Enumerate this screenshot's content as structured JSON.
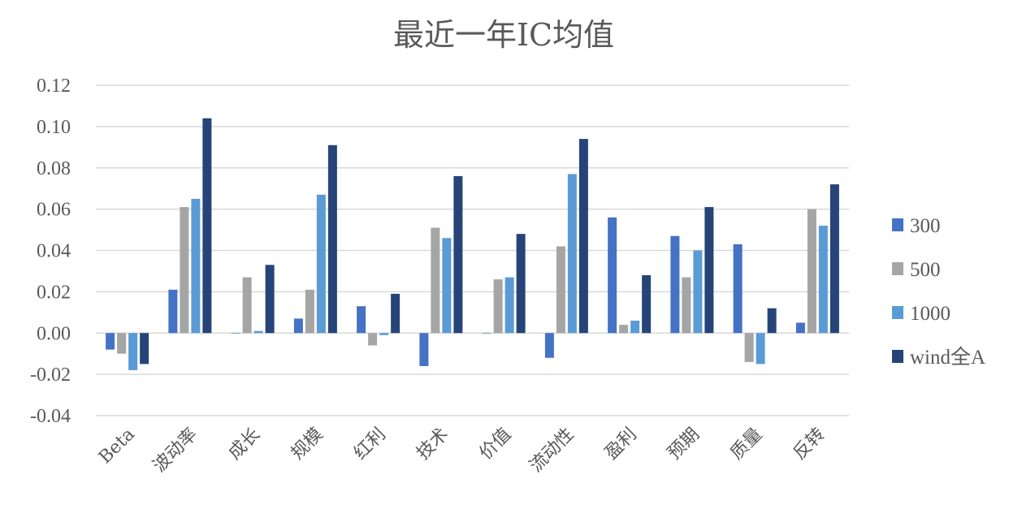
{
  "chart_data": {
    "type": "bar",
    "title": "最近一年IC均值",
    "xlabel": "",
    "ylabel": "",
    "categories": [
      "Beta",
      "波动率",
      "成长",
      "规模",
      "红利",
      "技术",
      "价值",
      "流动性",
      "盈利",
      "预期",
      "质量",
      "反转"
    ],
    "series": [
      {
        "name": "300",
        "color": "#4472c4",
        "values": [
          -0.008,
          0.021,
          0.0,
          0.007,
          0.013,
          -0.016,
          0.0,
          -0.012,
          0.056,
          0.047,
          0.043,
          0.005
        ]
      },
      {
        "name": "500",
        "color": "#a5a5a5",
        "values": [
          -0.01,
          0.061,
          0.027,
          0.021,
          -0.006,
          0.051,
          0.026,
          0.042,
          0.004,
          0.027,
          -0.014,
          0.06
        ]
      },
      {
        "name": "1000",
        "color": "#5b9bd5",
        "values": [
          -0.018,
          0.065,
          0.001,
          0.067,
          -0.001,
          0.046,
          0.027,
          0.077,
          0.006,
          0.04,
          -0.015,
          0.052
        ]
      },
      {
        "name": "wind全A",
        "color": "#264478",
        "values": [
          -0.015,
          0.104,
          0.033,
          0.091,
          0.019,
          0.076,
          0.048,
          0.094,
          0.028,
          0.061,
          0.012,
          0.072
        ]
      }
    ],
    "ylim": [
      -0.04,
      0.12
    ],
    "yticks": [
      "0.12",
      "0.10",
      "0.08",
      "0.06",
      "0.04",
      "0.02",
      "0.00",
      "-0.02",
      "-0.04"
    ],
    "ytick_values": [
      0.12,
      0.1,
      0.08,
      0.06,
      0.04,
      0.02,
      0.0,
      -0.02,
      -0.04
    ],
    "grid": true,
    "legend_position": "right"
  }
}
